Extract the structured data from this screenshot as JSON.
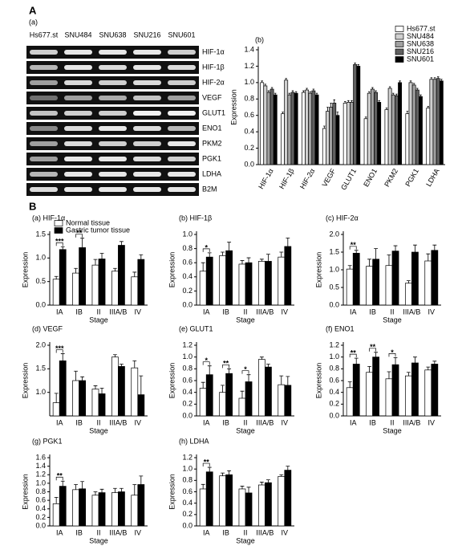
{
  "panel_a": {
    "label": "A",
    "sublabel": "(a)",
    "lanes": [
      "Hs677.st",
      "SNU484",
      "SNU638",
      "SNU216",
      "SNU601"
    ],
    "genes": [
      "HIF-1α",
      "HIF-1β",
      "HIF-2α",
      "VEGF",
      "GLUT1",
      "ENO1",
      "PKM2",
      "PGK1",
      "LDHA",
      "B2M"
    ]
  },
  "panel_b_label": "B",
  "chart_data": [
    {
      "type": "bar",
      "title": "(b)",
      "ylabel": "Expression",
      "legend": "upper right",
      "categories": [
        "HIF-1α",
        "HIF-1β",
        "HIF-2α",
        "VEGF",
        "GLUT1",
        "ENO1",
        "PKM2",
        "PGK1",
        "LDHA"
      ],
      "series": [
        {
          "name": "Hs677.st",
          "color": "#ffffff",
          "values": [
            1.0,
            0.62,
            0.88,
            0.44,
            0.75,
            0.56,
            0.67,
            0.62,
            0.69
          ],
          "errors": [
            0.02,
            0.02,
            0.02,
            0.03,
            0.02,
            0.02,
            0.02,
            0.03,
            0.02
          ]
        },
        {
          "name": "SNU484",
          "color": "#d0d0d0",
          "values": [
            0.96,
            1.03,
            0.91,
            0.65,
            0.76,
            0.87,
            0.93,
            1.0,
            1.04
          ],
          "errors": [
            0.02,
            0.02,
            0.02,
            0.05,
            0.02,
            0.02,
            0.02,
            0.02,
            0.02
          ]
        },
        {
          "name": "SNU638",
          "color": "#a0a0a0",
          "values": [
            0.88,
            0.85,
            0.87,
            0.7,
            0.76,
            0.92,
            0.85,
            0.97,
            1.04
          ],
          "errors": [
            0.02,
            0.02,
            0.02,
            0.05,
            0.02,
            0.02,
            0.02,
            0.02,
            0.02
          ]
        },
        {
          "name": "SNU216",
          "color": "#606060",
          "values": [
            0.92,
            0.88,
            0.9,
            0.75,
            1.22,
            0.88,
            0.84,
            0.91,
            1.05
          ],
          "errors": [
            0.02,
            0.02,
            0.02,
            0.04,
            0.02,
            0.02,
            0.02,
            0.02,
            0.02
          ]
        },
        {
          "name": "SNU601",
          "color": "#000000",
          "values": [
            0.85,
            0.87,
            0.85,
            0.6,
            1.2,
            0.76,
            1.0,
            0.83,
            1.02
          ],
          "errors": [
            0.02,
            0.02,
            0.02,
            0.04,
            0.02,
            0.02,
            0.02,
            0.02,
            0.02
          ]
        }
      ],
      "ylim": [
        0,
        1.4
      ],
      "yticks": [
        {
          "value": 0,
          "label": "0.0"
        },
        0.2,
        0.4,
        0.6,
        0.8,
        {
          "value": 1,
          "label": "1.0"
        },
        1.2,
        1.4
      ]
    },
    {
      "type": "bar",
      "title": "(a) HIF-1α",
      "xlabel": "Stage",
      "ylabel": "Expression",
      "legend": "upper left",
      "categories": [
        "IA",
        "IB",
        "II",
        "IIIA/B",
        "IV"
      ],
      "series": [
        {
          "name": "Normal tissue",
          "color": "#ffffff",
          "values": [
            0.55,
            0.68,
            0.85,
            0.72,
            0.6
          ],
          "errors": [
            0.06,
            0.1,
            0.12,
            0.06,
            0.1
          ]
        },
        {
          "name": "Gastric tumor tissue",
          "color": "#000000",
          "values": [
            1.18,
            1.22,
            0.98,
            1.27,
            0.97
          ],
          "errors": [
            0.06,
            0.2,
            0.12,
            0.08,
            0.1
          ]
        }
      ],
      "annotations": [
        {
          "category": "IA",
          "text": "***"
        },
        {
          "category": "IB",
          "text": "**"
        }
      ],
      "ylim": [
        0,
        1.5
      ],
      "yticks": [
        {
          "value": 0,
          "label": "0.0"
        },
        0.5,
        {
          "value": 1,
          "label": "1.0"
        },
        1.5
      ]
    },
    {
      "type": "bar",
      "title": "(b) HIF-1β",
      "xlabel": "Stage",
      "ylabel": "Expression",
      "categories": [
        "IA",
        "IB",
        "II",
        "IIIA/B",
        "IV"
      ],
      "series": [
        {
          "color": "#ffffff",
          "values": [
            0.48,
            0.7,
            0.58,
            0.62,
            0.68
          ],
          "errors": [
            0.12,
            0.05,
            0.05,
            0.03,
            0.07
          ]
        },
        {
          "color": "#000000",
          "values": [
            0.68,
            0.77,
            0.6,
            0.62,
            0.83
          ],
          "errors": [
            0.06,
            0.12,
            0.07,
            0.1,
            0.12
          ]
        }
      ],
      "annotations": [
        {
          "category": "IA",
          "text": "*"
        }
      ],
      "ylim": [
        0,
        1.0
      ],
      "yticks": [
        {
          "value": 0,
          "label": "0.0"
        },
        0.2,
        0.4,
        0.6,
        0.8,
        {
          "value": 1,
          "label": "1.0"
        }
      ]
    },
    {
      "type": "bar",
      "title": "(c) HIF-2α",
      "xlabel": "Stage",
      "ylabel": "Expression",
      "categories": [
        "IA",
        "IB",
        "II",
        "IIIA/B",
        "IV"
      ],
      "series": [
        {
          "color": "#ffffff",
          "values": [
            1.02,
            1.1,
            1.12,
            0.62,
            1.25
          ],
          "errors": [
            0.1,
            0.2,
            0.3,
            0.07,
            0.2
          ]
        },
        {
          "color": "#000000",
          "values": [
            1.47,
            1.3,
            1.53,
            1.5,
            1.55
          ],
          "errors": [
            0.08,
            0.3,
            0.15,
            0.2,
            0.15
          ]
        }
      ],
      "annotations": [
        {
          "category": "IA",
          "text": "**"
        }
      ],
      "ylim": [
        0,
        2.0
      ],
      "yticks": [
        {
          "value": 0,
          "label": "0.0"
        },
        0.5,
        {
          "value": 1,
          "label": "1.0"
        },
        1.5,
        {
          "value": 2,
          "label": "2.0"
        }
      ]
    },
    {
      "type": "bar",
      "title": "(d) VEGF",
      "xlabel": "Stage",
      "ylabel": "Expression",
      "categories": [
        "IA",
        "IB",
        "II",
        "IIIA/B",
        "IV"
      ],
      "series": [
        {
          "color": "#ffffff",
          "values": [
            0.78,
            1.25,
            1.07,
            1.75,
            1.52
          ],
          "errors": [
            0.2,
            0.2,
            0.07,
            0.05,
            0.15
          ]
        },
        {
          "color": "#000000",
          "values": [
            1.67,
            1.25,
            0.97,
            1.55,
            0.95
          ],
          "errors": [
            0.15,
            0.08,
            0.12,
            0.05,
            0.4
          ]
        }
      ],
      "annotations": [
        {
          "category": "IA",
          "text": "***"
        }
      ],
      "ylim": [
        0.5,
        2.0
      ],
      "yticks": [
        {
          "value": 1,
          "label": "1.0"
        },
        1.5,
        {
          "value": 2,
          "label": "2.0"
        }
      ]
    },
    {
      "type": "bar",
      "title": "(e) GLUT1",
      "xlabel": "Stage",
      "ylabel": "Expression",
      "categories": [
        "IA",
        "IB",
        "II",
        "IIIA/B",
        "IV"
      ],
      "series": [
        {
          "color": "#ffffff",
          "values": [
            0.47,
            0.4,
            0.3,
            0.96,
            0.53
          ],
          "errors": [
            0.1,
            0.12,
            0.12,
            0.04,
            0.15
          ]
        },
        {
          "color": "#000000",
          "values": [
            0.7,
            0.72,
            0.58,
            0.83,
            0.52
          ],
          "errors": [
            0.15,
            0.08,
            0.12,
            0.05,
            0.15
          ]
        }
      ],
      "annotations": [
        {
          "category": "IA",
          "text": "*"
        },
        {
          "category": "IB",
          "text": "**"
        },
        {
          "category": "II",
          "text": "*"
        }
      ],
      "ylim": [
        0,
        1.2
      ],
      "yticks": [
        {
          "value": 0,
          "label": "0.0"
        },
        0.2,
        0.4,
        0.6,
        0.8,
        {
          "value": 1,
          "label": "1.0"
        },
        1.2
      ]
    },
    {
      "type": "bar",
      "title": "(f) ENO1",
      "xlabel": "Stage",
      "ylabel": "Expression",
      "categories": [
        "IA",
        "IB",
        "II",
        "IIIA/B",
        "IV"
      ],
      "series": [
        {
          "color": "#ffffff",
          "values": [
            0.48,
            0.74,
            0.63,
            0.68,
            0.78
          ],
          "errors": [
            0.1,
            0.1,
            0.12,
            0.06,
            0.05
          ]
        },
        {
          "color": "#000000",
          "values": [
            0.88,
            1.0,
            0.87,
            0.9,
            0.88
          ],
          "errors": [
            0.1,
            0.08,
            0.12,
            0.1,
            0.05
          ]
        }
      ],
      "annotations": [
        {
          "category": "IA",
          "text": "**"
        },
        {
          "category": "IB",
          "text": "**"
        },
        {
          "category": "II",
          "text": "*"
        }
      ],
      "ylim": [
        0,
        1.2
      ],
      "yticks": [
        {
          "value": 0,
          "label": "0.0"
        },
        0.2,
        0.4,
        0.6,
        0.8,
        {
          "value": 1,
          "label": "1.0"
        },
        1.2
      ]
    },
    {
      "type": "bar",
      "title": "(g) PGK1",
      "xlabel": "Stage",
      "ylabel": "Expression",
      "categories": [
        "IA",
        "IB",
        "II",
        "IIIA/B",
        "IV"
      ],
      "series": [
        {
          "color": "#ffffff",
          "values": [
            0.52,
            0.85,
            0.72,
            0.78,
            0.72
          ],
          "errors": [
            0.15,
            0.12,
            0.08,
            0.1,
            0.25
          ]
        },
        {
          "color": "#000000",
          "values": [
            0.93,
            0.87,
            0.78,
            0.8,
            0.97
          ],
          "errors": [
            0.12,
            0.17,
            0.08,
            0.08,
            0.2
          ]
        }
      ],
      "annotations": [
        {
          "category": "IA",
          "text": "**"
        }
      ],
      "ylim": [
        0,
        1.6
      ],
      "yticks": [
        {
          "value": 0,
          "label": "0.0"
        },
        0.2,
        0.4,
        0.6,
        0.8,
        {
          "value": 1,
          "label": "1.0"
        },
        1.2,
        1.4,
        1.6
      ]
    },
    {
      "type": "bar",
      "title": "(h) LDHA",
      "xlabel": "Stage",
      "ylabel": "Expression",
      "categories": [
        "IA",
        "IB",
        "II",
        "IIIA/B",
        "IV"
      ],
      "series": [
        {
          "color": "#ffffff",
          "values": [
            0.65,
            0.88,
            0.65,
            0.72,
            0.87
          ],
          "errors": [
            0.08,
            0.05,
            0.05,
            0.05,
            0.03
          ]
        },
        {
          "color": "#000000",
          "values": [
            0.95,
            0.9,
            0.58,
            0.76,
            0.98
          ],
          "errors": [
            0.08,
            0.07,
            0.1,
            0.05,
            0.07
          ]
        }
      ],
      "annotations": [
        {
          "category": "IA",
          "text": "**"
        }
      ],
      "ylim": [
        0,
        1.2
      ],
      "yticks": [
        {
          "value": 0,
          "label": "0.0"
        },
        0.2,
        0.4,
        0.6,
        0.8,
        {
          "value": 1,
          "label": "1.0"
        },
        1.2
      ]
    }
  ]
}
